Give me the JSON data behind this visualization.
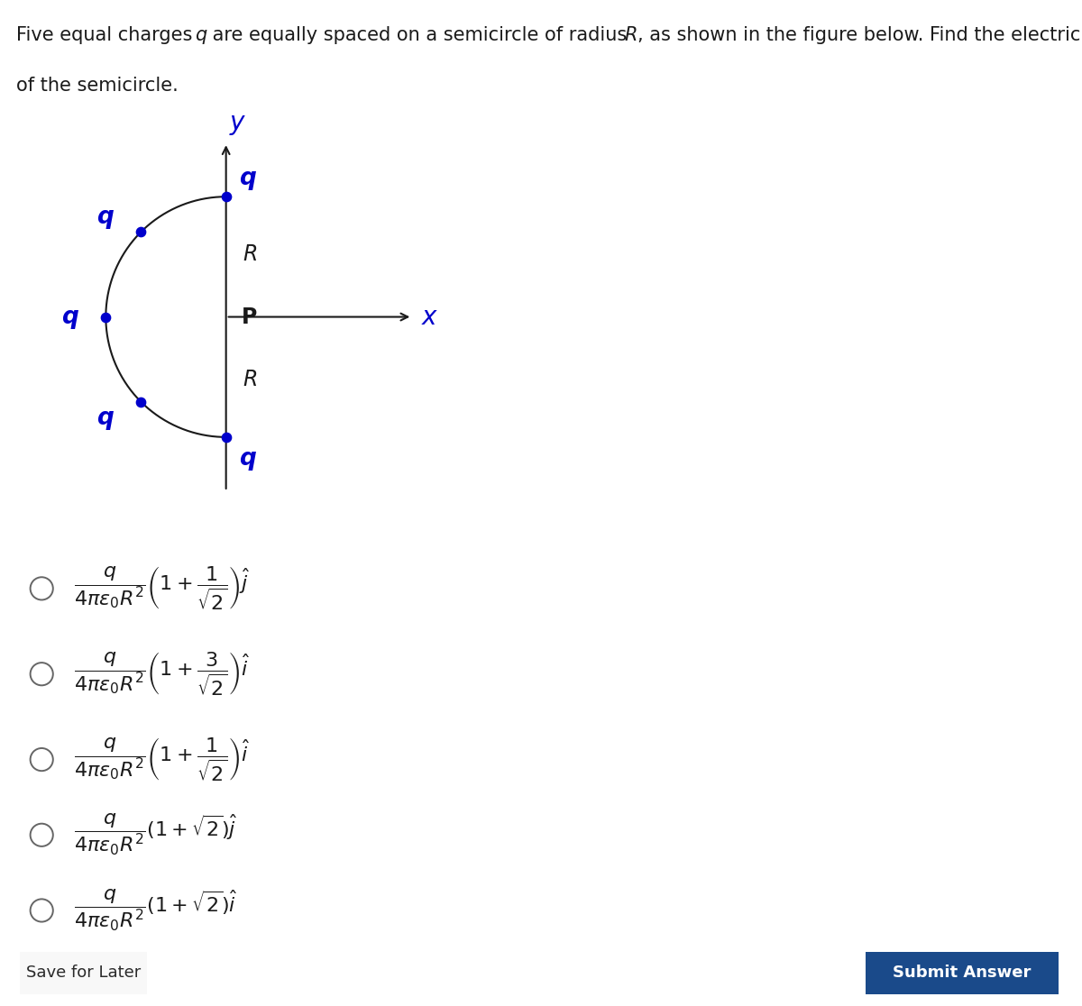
{
  "background_color": "#ffffff",
  "charge_color": "#0000cc",
  "charge_dot_size": 55,
  "semicircle_color": "#1a1a1a",
  "axis_color": "#1a1a1a",
  "label_color": "#1a1a1a",
  "option_texts": [
    "$\\dfrac{q}{4\\pi\\varepsilon_0 R^2}\\left(1 + \\dfrac{1}{\\sqrt{2}}\\right)\\hat{j}$",
    "$\\dfrac{q}{4\\pi\\varepsilon_0 R^2}\\left(1 + \\dfrac{3}{\\sqrt{2}}\\right)\\hat{i}$",
    "$\\dfrac{q}{4\\pi\\varepsilon_0 R^2}\\left(1 + \\dfrac{1}{\\sqrt{2}}\\right)\\hat{i}$",
    "$\\dfrac{q}{4\\pi\\varepsilon_0 R^2}(1 + \\sqrt{2})\\hat{j}$",
    "$\\dfrac{q}{4\\pi\\varepsilon_0 R^2}(1 + \\sqrt{2})\\hat{i}$"
  ],
  "save_button_text": "Save for Later",
  "submit_button_text": "Submit Answer",
  "submit_bg": "#1a4a8a",
  "submit_text_color": "#ffffff",
  "title_fontsize": 15,
  "option_fontsize": 16
}
